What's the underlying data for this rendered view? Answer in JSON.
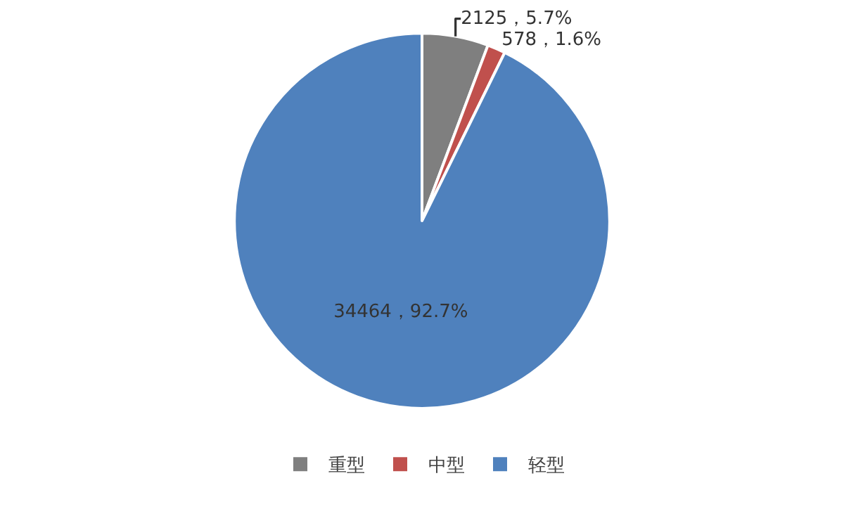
{
  "chart_data": {
    "type": "pie",
    "categories": [
      "重型",
      "中型",
      "轻型"
    ],
    "values": [
      2125,
      578,
      34464
    ],
    "colors": [
      "#7f7f7f",
      "#c0504d",
      "#4f81bd"
    ],
    "value_labels": [
      "2125，5.7%",
      "578，1.6%",
      "34464，92.7%"
    ],
    "legend": "bottom"
  }
}
